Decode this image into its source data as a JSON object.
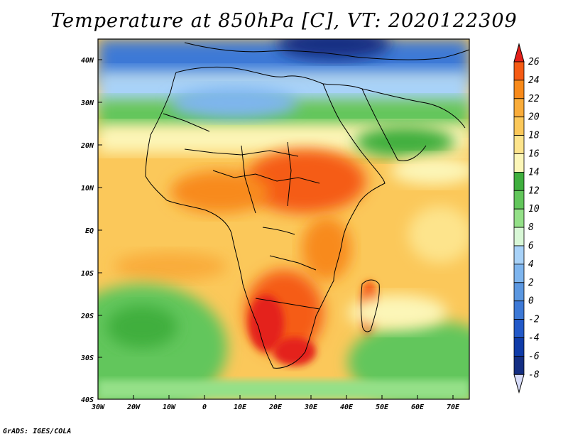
{
  "title": "Temperature at 850hPa [C], VT: 2020122309",
  "credit": "GrADS: IGES/COLA",
  "map": {
    "region": "Africa",
    "lat_labels": [
      "40N",
      "30N",
      "20N",
      "10N",
      "EQ",
      "10S",
      "20S",
      "30S",
      "40S"
    ],
    "lon_labels": [
      "30W",
      "20W",
      "10W",
      "0",
      "10E",
      "20E",
      "30E",
      "40E",
      "50E",
      "60E",
      "70E"
    ],
    "extent": {
      "lon_min": -30,
      "lon_max": 75,
      "lat_min": -40,
      "lat_max": 45
    }
  },
  "colorbar": {
    "levels": [
      "26",
      "24",
      "22",
      "20",
      "18",
      "16",
      "14",
      "12",
      "10",
      "8",
      "6",
      "4",
      "2",
      "0",
      "-2",
      "-4",
      "-6",
      "-8"
    ],
    "colors": [
      "#e4201a",
      "#f55b14",
      "#f88a1a",
      "#f9ac3a",
      "#fbc85a",
      "#fde48c",
      "#fcf6b8",
      "#3faf3e",
      "#62c65b",
      "#94e088",
      "#d8f7d6",
      "#a8d2f8",
      "#7eb5ee",
      "#5b97e0",
      "#3d79d6",
      "#2259c8",
      "#0f3ba8",
      "#142e83",
      "#d8ddfa"
    ]
  },
  "color_key": {
    "ocean_cold": "#3d79d6",
    "ocean_warm": "#f9ac3a",
    "land_hot": "#f55b14",
    "boundary": "#000000"
  }
}
